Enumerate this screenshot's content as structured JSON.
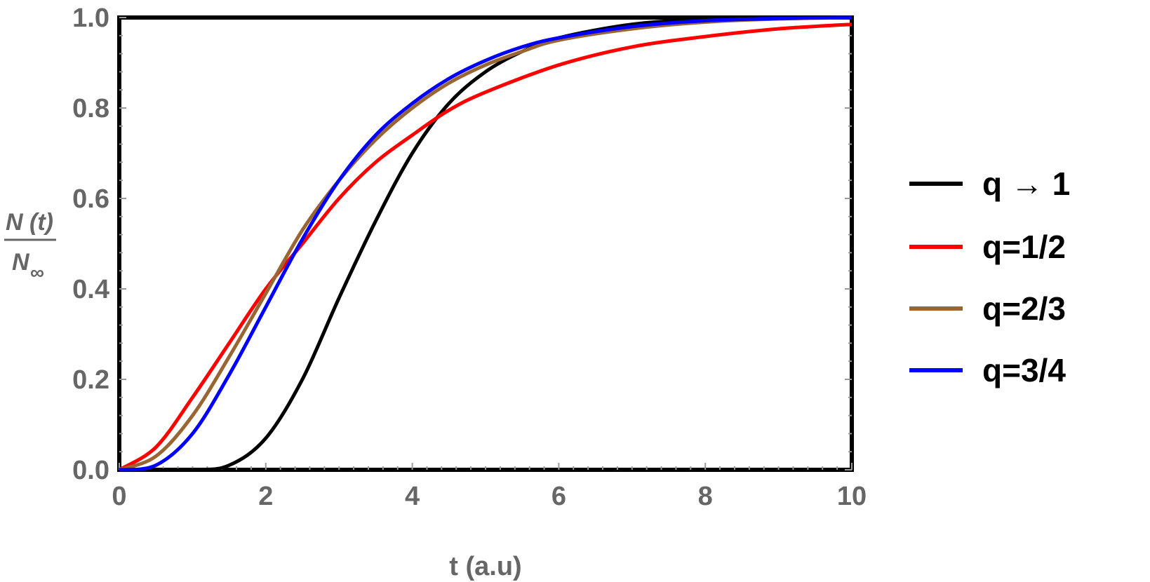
{
  "chart_data": {
    "type": "line",
    "xlabel": "t (a.u)",
    "ylabel": {
      "numerator": "N (t)",
      "denominator_base": "N",
      "denominator_sub": "∞"
    },
    "xlim": [
      0,
      10
    ],
    "ylim": [
      0,
      1
    ],
    "x_ticks": [
      "0",
      "2",
      "4",
      "6",
      "8",
      "10"
    ],
    "y_ticks": [
      "0.0",
      "0.2",
      "0.4",
      "0.6",
      "0.8",
      "1.0"
    ],
    "grid": false,
    "legend_position": "right",
    "series": [
      {
        "name": "q → 1",
        "color": "#000000",
        "points": [
          [
            0,
            0
          ],
          [
            1,
            0
          ],
          [
            1.5,
            0.01
          ],
          [
            2,
            0.07
          ],
          [
            2.5,
            0.2
          ],
          [
            3,
            0.38
          ],
          [
            3.5,
            0.55
          ],
          [
            4,
            0.7
          ],
          [
            4.5,
            0.81
          ],
          [
            5,
            0.88
          ],
          [
            5.5,
            0.925
          ],
          [
            6,
            0.955
          ],
          [
            7,
            0.985
          ],
          [
            8,
            0.996
          ],
          [
            9,
            0.999
          ],
          [
            10,
            1.0
          ]
        ]
      },
      {
        "name": "q=1/2",
        "color": "#ff0000",
        "points": [
          [
            0,
            0
          ],
          [
            0.5,
            0.05
          ],
          [
            1,
            0.16
          ],
          [
            1.5,
            0.28
          ],
          [
            2,
            0.4
          ],
          [
            2.5,
            0.5
          ],
          [
            3,
            0.6
          ],
          [
            3.5,
            0.68
          ],
          [
            4,
            0.74
          ],
          [
            4.5,
            0.795
          ],
          [
            5,
            0.835
          ],
          [
            6,
            0.895
          ],
          [
            7,
            0.935
          ],
          [
            8,
            0.958
          ],
          [
            9,
            0.975
          ],
          [
            10,
            0.985
          ]
        ]
      },
      {
        "name": "q=2/3",
        "color": "#996633",
        "points": [
          [
            0,
            0
          ],
          [
            0.5,
            0.03
          ],
          [
            1,
            0.12
          ],
          [
            1.5,
            0.25
          ],
          [
            2,
            0.39
          ],
          [
            2.5,
            0.53
          ],
          [
            3,
            0.64
          ],
          [
            3.5,
            0.73
          ],
          [
            4,
            0.8
          ],
          [
            4.5,
            0.855
          ],
          [
            5,
            0.895
          ],
          [
            5.5,
            0.925
          ],
          [
            6,
            0.95
          ],
          [
            7,
            0.975
          ],
          [
            8,
            0.99
          ],
          [
            9,
            0.997
          ],
          [
            10,
            1.0
          ]
        ]
      },
      {
        "name": "q=3/4",
        "color": "#0000ff",
        "points": [
          [
            0,
            0
          ],
          [
            0.5,
            0.01
          ],
          [
            1,
            0.08
          ],
          [
            1.5,
            0.21
          ],
          [
            2,
            0.36
          ],
          [
            2.5,
            0.51
          ],
          [
            3,
            0.64
          ],
          [
            3.5,
            0.74
          ],
          [
            4,
            0.81
          ],
          [
            4.5,
            0.865
          ],
          [
            5,
            0.905
          ],
          [
            5.5,
            0.935
          ],
          [
            6,
            0.955
          ],
          [
            7,
            0.98
          ],
          [
            8,
            0.993
          ],
          [
            9,
            0.998
          ],
          [
            10,
            1.0
          ]
        ]
      }
    ]
  }
}
